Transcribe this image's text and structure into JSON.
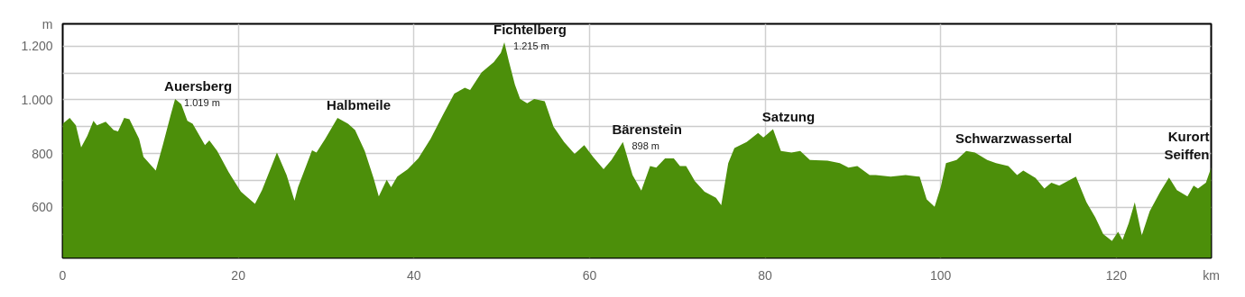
{
  "chart_data": {
    "type": "area",
    "xlabel": "km",
    "ylabel": "m",
    "x": [
      0,
      0.8,
      1.5,
      2.1,
      2.8,
      3.5,
      3.9,
      4.9,
      5.8,
      6.3,
      7.0,
      7.6,
      8.7,
      9.2,
      10.0,
      10.6,
      11.4,
      12.3,
      12.8,
      13.5,
      14.2,
      14.8,
      16.2,
      16.7,
      17.6,
      18.9,
      20.3,
      21.9,
      22.7,
      24.4,
      25.5,
      26.4,
      26.8,
      28.4,
      28.9,
      29.9,
      31.3,
      32.5,
      33.3,
      34.4,
      35.4,
      36.0,
      36.9,
      37.4,
      38.1,
      39.3,
      40.5,
      41.9,
      43.3,
      44.6,
      45.8,
      46.4,
      47.7,
      49.1,
      49.9,
      50.3,
      50.8,
      51.5,
      52.1,
      52.9,
      53.7,
      54.9,
      55.9,
      57.1,
      58.3,
      59.4,
      60.4,
      61.6,
      62.5,
      63.8,
      64.9,
      65.9,
      66.9,
      67.6,
      68.6,
      69.6,
      70.3,
      71.0,
      72.0,
      73.1,
      74.4,
      75.0,
      75.8,
      76.5,
      77.9,
      79.2,
      79.8,
      80.9,
      81.8,
      83.0,
      84.0,
      85.1,
      87.1,
      88.5,
      89.5,
      90.5,
      91.9,
      92.6,
      94.3,
      96.0,
      97.6,
      98.4,
      99.3,
      100.0,
      100.6,
      101.8,
      102.9,
      103.9,
      105.3,
      106.3,
      107.7,
      108.7,
      109.4,
      110.8,
      111.8,
      112.6,
      113.5,
      115.4,
      116.6,
      117.6,
      118.5,
      119.5,
      120.2,
      120.7,
      121.4,
      122.1,
      122.9,
      123.8,
      125.0,
      126.0,
      126.9,
      128.1,
      128.8,
      129.3,
      130.2,
      130.8
    ],
    "series": [
      {
        "color": "#4c8f0a",
        "values": [
          911,
          933,
          905,
          823,
          866,
          922,
          905,
          919,
          888,
          883,
          933,
          928,
          855,
          788,
          759,
          737,
          832,
          944,
          1003,
          984,
          922,
          911,
          832,
          849,
          810,
          731,
          658,
          613,
          664,
          804,
          720,
          625,
          675,
          812,
          804,
          855,
          933,
          911,
          888,
          810,
          709,
          641,
          703,
          675,
          714,
          742,
          782,
          855,
          944,
          1023,
          1045,
          1037,
          1102,
          1141,
          1175,
          1214,
          1146,
          1057,
          1003,
          987,
          1003,
          995,
          900,
          843,
          799,
          832,
          788,
          742,
          776,
          843,
          720,
          662,
          754,
          748,
          782,
          782,
          754,
          754,
          698,
          658,
          636,
          608,
          765,
          821,
          843,
          877,
          860,
          891,
          810,
          804,
          810,
          776,
          774,
          765,
          748,
          754,
          720,
          720,
          714,
          720,
          714,
          630,
          602,
          675,
          765,
          776,
          810,
          804,
          776,
          765,
          754,
          720,
          737,
          709,
          670,
          692,
          681,
          714,
          619,
          563,
          501,
          475,
          509,
          479,
          540,
          619,
          496,
          585,
          658,
          711,
          664,
          641,
          681,
          670,
          692,
          748
        ]
      }
    ],
    "xlim": [
      0,
      130.8
    ],
    "ylim": [
      412,
      1283
    ],
    "xticks": [
      0,
      20,
      40,
      60,
      80,
      100,
      120
    ],
    "yticks": [
      {
        "value": 500,
        "label": null
      },
      600,
      {
        "value": 700,
        "label": null
      },
      800,
      {
        "value": 900,
        "label": null
      },
      {
        "value": 1000,
        "label": "1.000"
      },
      {
        "value": 1100,
        "label": null
      },
      {
        "value": 1200,
        "label": "1.200"
      }
    ],
    "grid": true,
    "annotations": [
      {
        "text": "Auersberg",
        "x": 12.8,
        "y": 1003
      },
      {
        "text": "1.019 m",
        "x": 12.8,
        "y": 1003
      },
      {
        "text": "Halbmeile",
        "x": 31.3,
        "y": 933
      },
      {
        "text": "Fichtelberg",
        "x": 50.3,
        "y": 1214
      },
      {
        "text": "1.215 m",
        "x": 50.3,
        "y": 1214
      },
      {
        "text": "Bärenstein",
        "x": 63.8,
        "y": 843
      },
      {
        "text": "898 m",
        "x": 63.8,
        "y": 843
      },
      {
        "text": "Satzung",
        "x": 80.9,
        "y": 891
      },
      {
        "text": "Schwarzwassertal",
        "x": 102.9,
        "y": 810
      },
      {
        "text": "Kurort\nSeiffen",
        "x": 130.8,
        "y": 748
      }
    ]
  }
}
